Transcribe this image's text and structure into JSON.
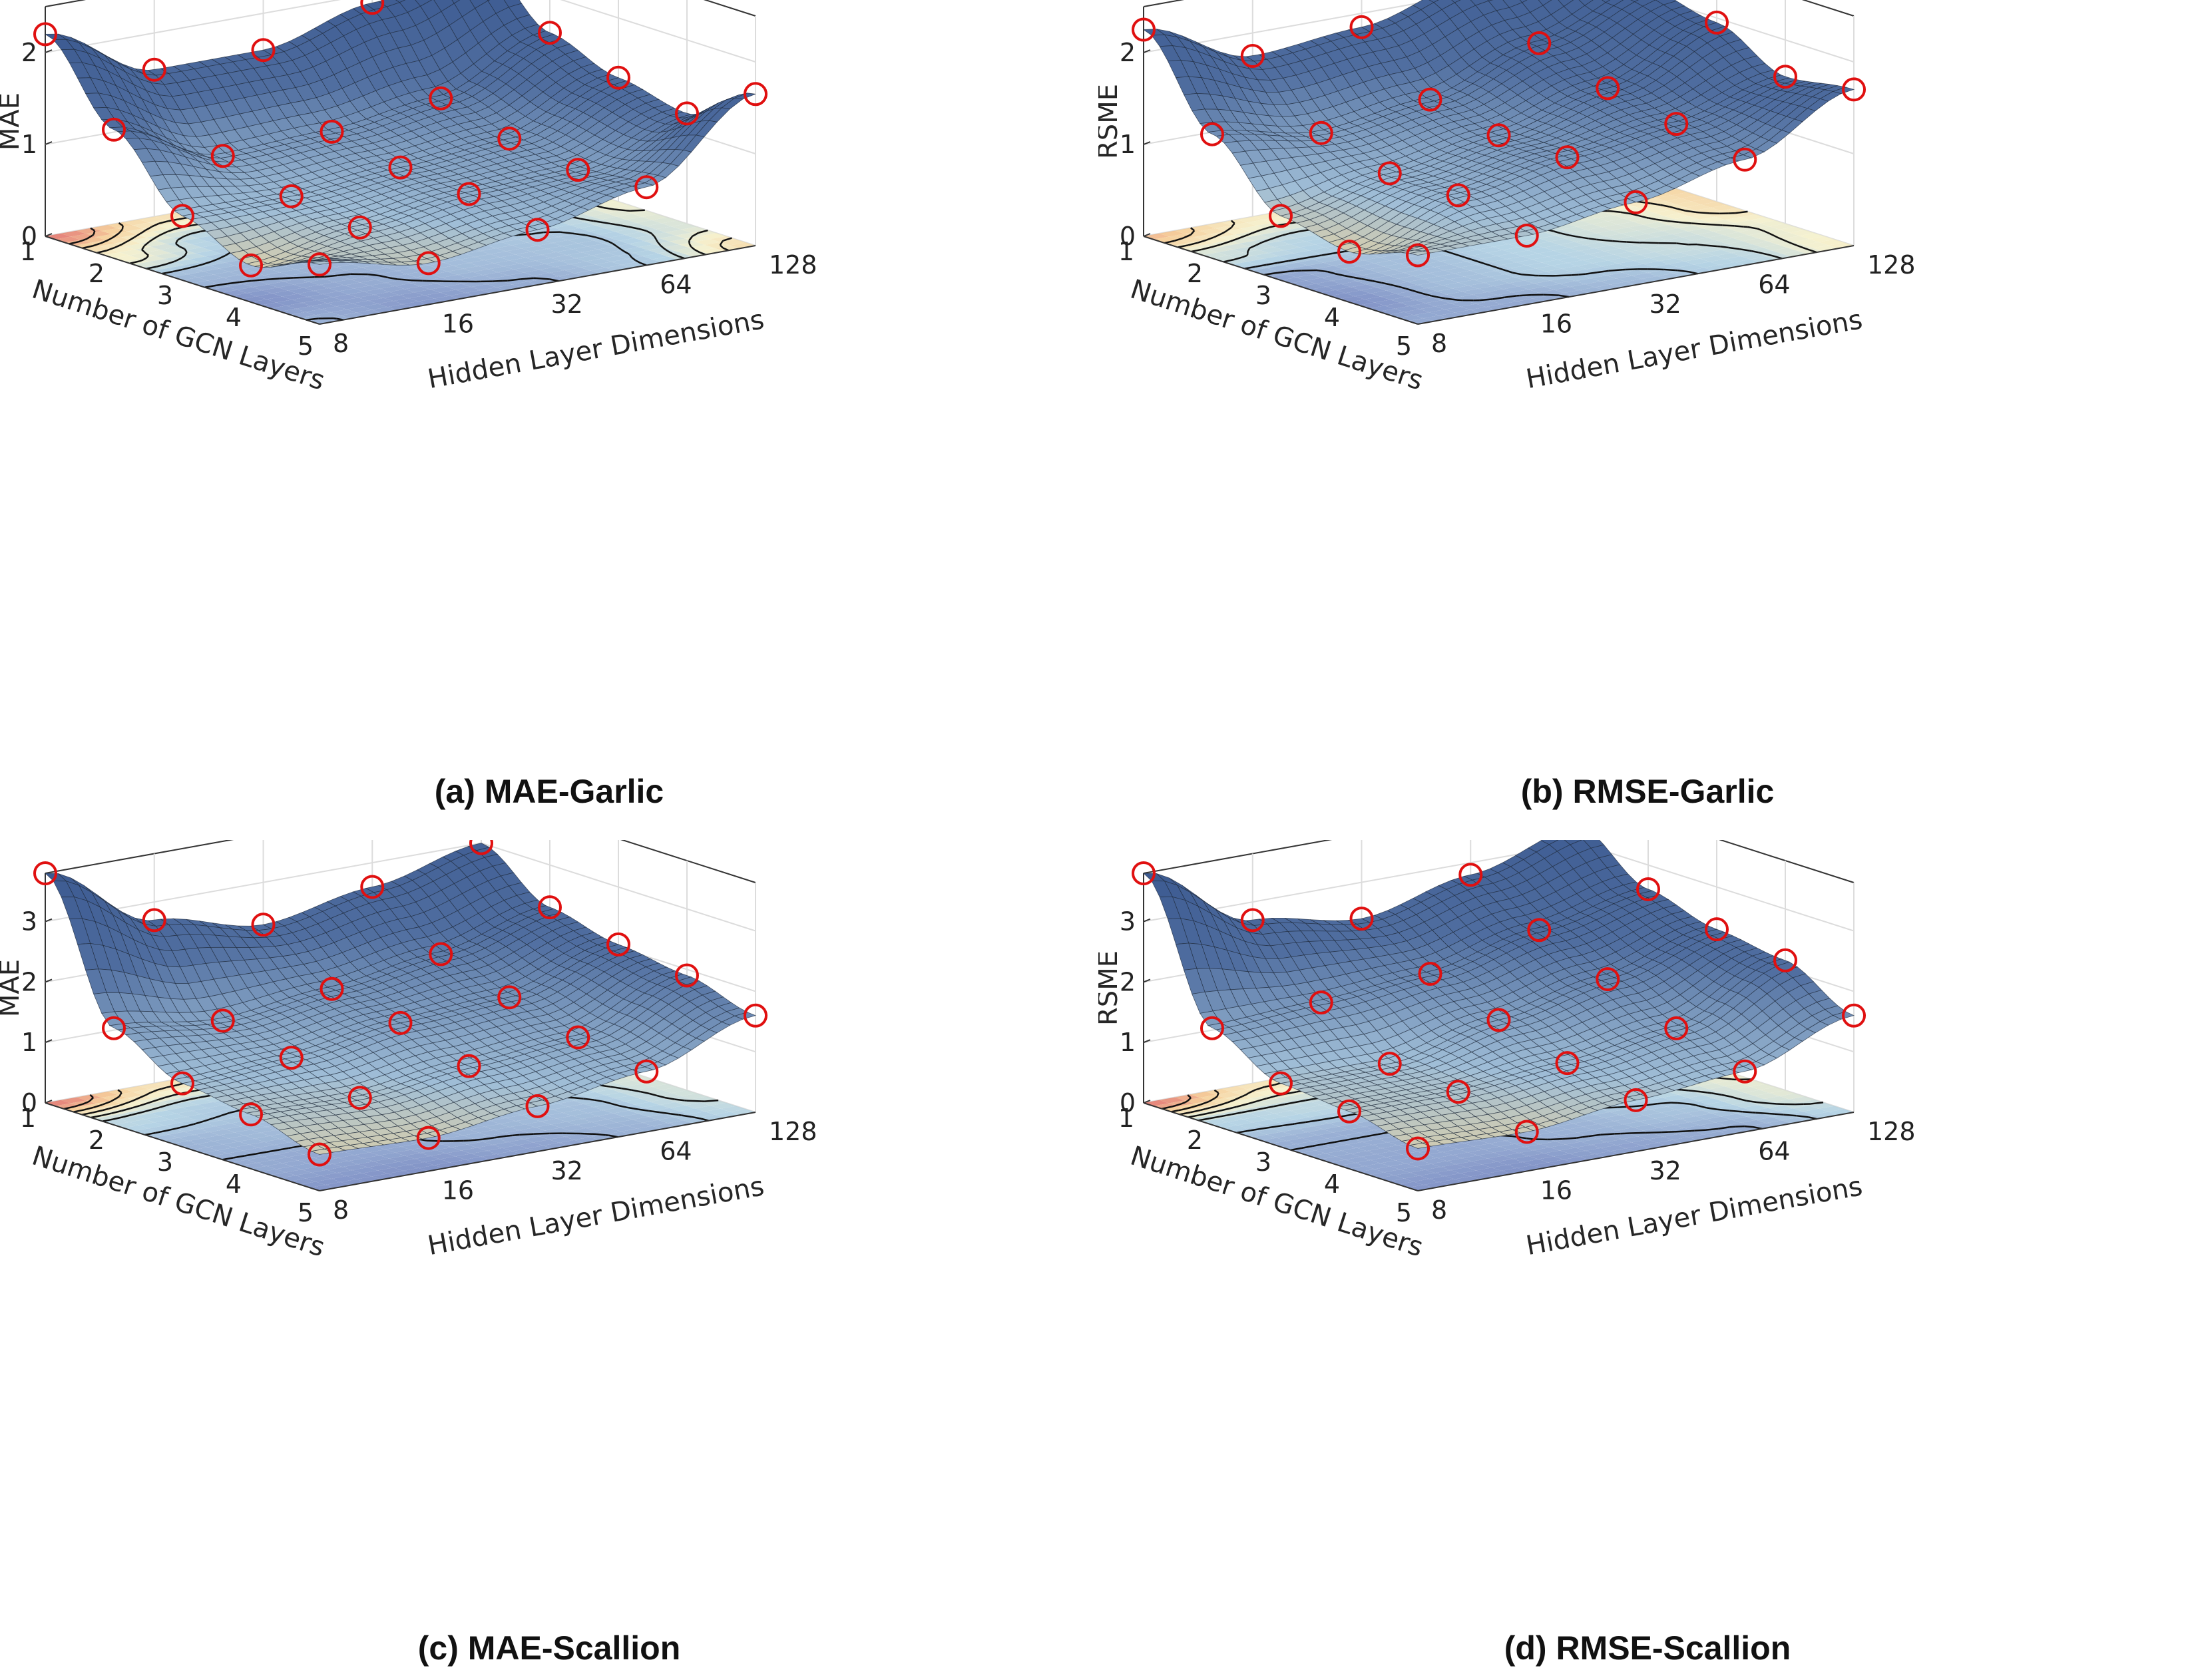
{
  "chart_data": [
    {
      "type": "surface3d",
      "caption": "(a) MAE-Garlic",
      "zlabel": "MAE",
      "xlabel": "Number of GCN Layers",
      "ylabel": "Hidden Layer Dimensions",
      "x_ticks": [
        "1",
        "2",
        "3",
        "4",
        "5"
      ],
      "y_ticks": [
        "8",
        "16",
        "32",
        "64",
        "128"
      ],
      "z_ticks": [
        "0",
        "1",
        "2"
      ],
      "zlim": [
        0,
        2.5
      ],
      "markers": "red circles",
      "values": [
        [
          2.2,
          1.6,
          1.6,
          1.9,
          2.2
        ],
        [
          1.4,
          0.9,
          0.95,
          1.1,
          1.6
        ],
        [
          0.7,
          0.7,
          0.8,
          0.9,
          1.35
        ],
        [
          0.4,
          0.6,
          0.75,
          0.8,
          1.2
        ],
        [
          0.65,
          0.45,
          0.6,
          0.85,
          1.65
        ]
      ]
    },
    {
      "type": "surface3d",
      "caption": "(b) RMSE-Garlic",
      "zlabel": "RSME",
      "xlabel": "Number of GCN Layers",
      "ylabel": "Hidden Layer Dimensions",
      "x_ticks": [
        "1",
        "2",
        "3",
        "4",
        "5"
      ],
      "y_ticks": [
        "8",
        "16",
        "32",
        "64",
        "128"
      ],
      "z_ticks": [
        "0",
        "1",
        "2"
      ],
      "zlim": [
        0,
        2.5
      ],
      "markers": "red circles",
      "values": [
        [
          2.25,
          1.75,
          1.85,
          2.15,
          2.55
        ],
        [
          1.35,
          1.15,
          1.3,
          1.7,
          2.1
        ],
        [
          0.7,
          0.95,
          1.15,
          1.45,
          1.95
        ],
        [
          0.55,
          0.95,
          1.15,
          1.3,
          1.6
        ],
        [
          0.75,
          0.75,
          0.9,
          1.15,
          1.7
        ]
      ]
    },
    {
      "type": "surface3d",
      "caption": "(c) MAE-Scallion",
      "zlabel": "MAE",
      "xlabel": "Number of GCN Layers",
      "ylabel": "Hidden Layer Dimensions",
      "x_ticks": [
        "1",
        "2",
        "3",
        "4",
        "5"
      ],
      "y_ticks": [
        "8",
        "16",
        "32",
        "64",
        "128"
      ],
      "z_ticks": [
        "0",
        "1",
        "2",
        "3"
      ],
      "zlim": [
        0,
        3.8
      ],
      "markers": "red circles",
      "values": [
        [
          3.8,
          2.7,
          2.3,
          2.6,
          3.0
        ],
        [
          1.6,
          1.4,
          1.6,
          1.85,
          2.3
        ],
        [
          1.05,
          1.15,
          1.4,
          1.5,
          2.05
        ],
        [
          0.9,
          0.85,
          1.05,
          1.2,
          1.9
        ],
        [
          0.6,
          0.55,
          0.75,
          1.0,
          1.6
        ]
      ]
    },
    {
      "type": "surface3d",
      "caption": "(d) RMSE-Scallion",
      "zlabel": "RSME",
      "xlabel": "Number of GCN Layers",
      "ylabel": "Hidden Layer Dimensions",
      "x_ticks": [
        "1",
        "2",
        "3",
        "4",
        "5"
      ],
      "y_ticks": [
        "8",
        "16",
        "32",
        "64",
        "128"
      ],
      "z_ticks": [
        "0",
        "1",
        "2",
        "3"
      ],
      "zlim": [
        0,
        3.8
      ],
      "markers": "red circles",
      "values": [
        [
          3.8,
          2.7,
          2.4,
          2.8,
          3.3
        ],
        [
          1.6,
          1.7,
          1.85,
          2.25,
          2.6
        ],
        [
          1.05,
          1.05,
          1.45,
          1.8,
          2.3
        ],
        [
          0.95,
          0.95,
          1.1,
          1.35,
          2.15
        ],
        [
          0.7,
          0.65,
          0.85,
          1.0,
          1.6
        ]
      ]
    }
  ]
}
